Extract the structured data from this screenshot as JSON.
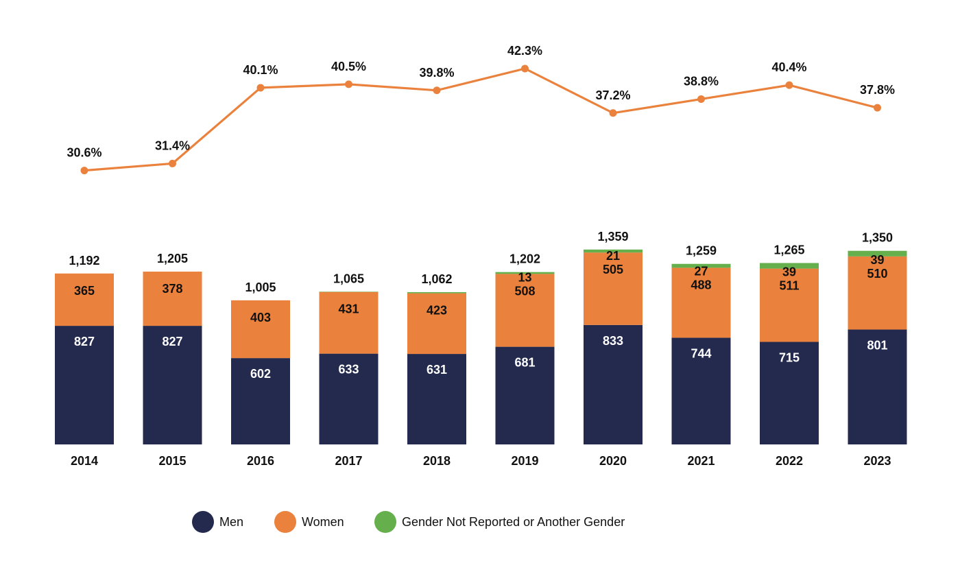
{
  "chart_data": {
    "type": "bar",
    "stacked": true,
    "categories": [
      "2014",
      "2015",
      "2016",
      "2017",
      "2018",
      "2019",
      "2020",
      "2021",
      "2022",
      "2023"
    ],
    "series": [
      {
        "name": "Men",
        "values": [
          827,
          827,
          602,
          633,
          631,
          681,
          833,
          744,
          715,
          801
        ]
      },
      {
        "name": "Women",
        "values": [
          365,
          378,
          403,
          431,
          423,
          508,
          505,
          488,
          511,
          510
        ]
      },
      {
        "name": "Gender Not Reported or Another Gender",
        "values": [
          0,
          0,
          0,
          1,
          8,
          13,
          21,
          27,
          39,
          39
        ]
      }
    ],
    "totals": [
      "1,192",
      "1,205",
      "1,005",
      "1,065",
      "1,062",
      "1,202",
      "1,359",
      "1,259",
      "1,265",
      "1,350"
    ],
    "segment_labels": {
      "Men": [
        "827",
        "827",
        "602",
        "633",
        "631",
        "681",
        "833",
        "744",
        "715",
        "801"
      ],
      "Women": [
        "365",
        "378",
        "403",
        "431",
        "423",
        "508",
        "505",
        "488",
        "511",
        "510"
      ],
      "Gender Not Reported or Another Gender": [
        "",
        "",
        "",
        "",
        "",
        "13",
        "21",
        "27",
        "39",
        "39"
      ]
    },
    "line": {
      "values": [
        30.6,
        31.4,
        40.1,
        40.5,
        39.8,
        42.3,
        37.2,
        38.8,
        40.4,
        37.8
      ],
      "labels": [
        "30.6%",
        "31.4%",
        "40.1%",
        "40.5%",
        "39.8%",
        "42.3%",
        "37.2%",
        "38.8%",
        "40.4%",
        "37.8%"
      ]
    },
    "legend": [
      "Men",
      "Women",
      "Gender Not Reported or Another Gender"
    ],
    "legend_position": "bottom",
    "grid": false,
    "title": "",
    "xlabel": "",
    "ylabel": "",
    "colors": {
      "Men": "#232a4e",
      "Women": "#ea823d",
      "Gender Not Reported or Another Gender": "#65af4d",
      "line": "#ea823d"
    }
  }
}
